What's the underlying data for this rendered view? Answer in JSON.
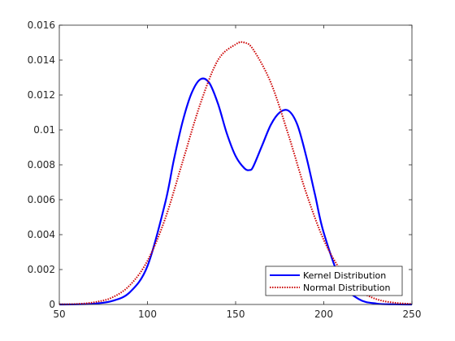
{
  "chart_data": {
    "type": "line",
    "title": "",
    "xlabel": "",
    "ylabel": "",
    "xlim": [
      50,
      250
    ],
    "ylim": [
      0,
      0.016
    ],
    "x_ticks": [
      50,
      100,
      150,
      200,
      250
    ],
    "x_tick_labels": [
      "50",
      "100",
      "150",
      "200",
      "250"
    ],
    "y_ticks": [
      0,
      0.002,
      0.004,
      0.006,
      0.008,
      0.01,
      0.012,
      0.014,
      0.016
    ],
    "y_tick_labels": [
      "0",
      "0.002",
      "0.004",
      "0.006",
      "0.008",
      "0.01",
      "0.012",
      "0.014",
      "0.016"
    ],
    "grid": false,
    "legend_position": "bottom-right",
    "series": [
      {
        "name": "Kernel Distribution",
        "color": "#0000ff",
        "style": "solid",
        "x": [
          50,
          60,
          70,
          80,
          90,
          100,
          110,
          115,
          120,
          125,
          130,
          135,
          140,
          145,
          150,
          155,
          158,
          160,
          165,
          170,
          175,
          180,
          185,
          190,
          195,
          200,
          210,
          220,
          230,
          240,
          250
        ],
        "y": [
          0,
          1e-05,
          5e-05,
          0.0002,
          0.0007,
          0.0022,
          0.0058,
          0.0083,
          0.0105,
          0.0121,
          0.0129,
          0.0127,
          0.0115,
          0.0098,
          0.0085,
          0.0078,
          0.0077,
          0.0079,
          0.0091,
          0.0103,
          0.011,
          0.0111,
          0.0103,
          0.0085,
          0.0063,
          0.0041,
          0.0013,
          0.0003,
          5e-05,
          1e-05,
          0
        ]
      },
      {
        "name": "Normal Distribution",
        "color": "#cc0000",
        "style": "dotted",
        "x": [
          50,
          60,
          70,
          80,
          90,
          100,
          110,
          120,
          130,
          140,
          150,
          155,
          160,
          170,
          180,
          190,
          200,
          210,
          220,
          230,
          240,
          250
        ],
        "y": [
          1e-05,
          3e-05,
          0.00013,
          0.0004,
          0.0011,
          0.0025,
          0.0049,
          0.0082,
          0.0115,
          0.014,
          0.0149,
          0.015,
          0.0146,
          0.0127,
          0.0097,
          0.0064,
          0.0037,
          0.0019,
          0.00081,
          0.0003,
          0.0001,
          3e-05
        ]
      }
    ]
  }
}
